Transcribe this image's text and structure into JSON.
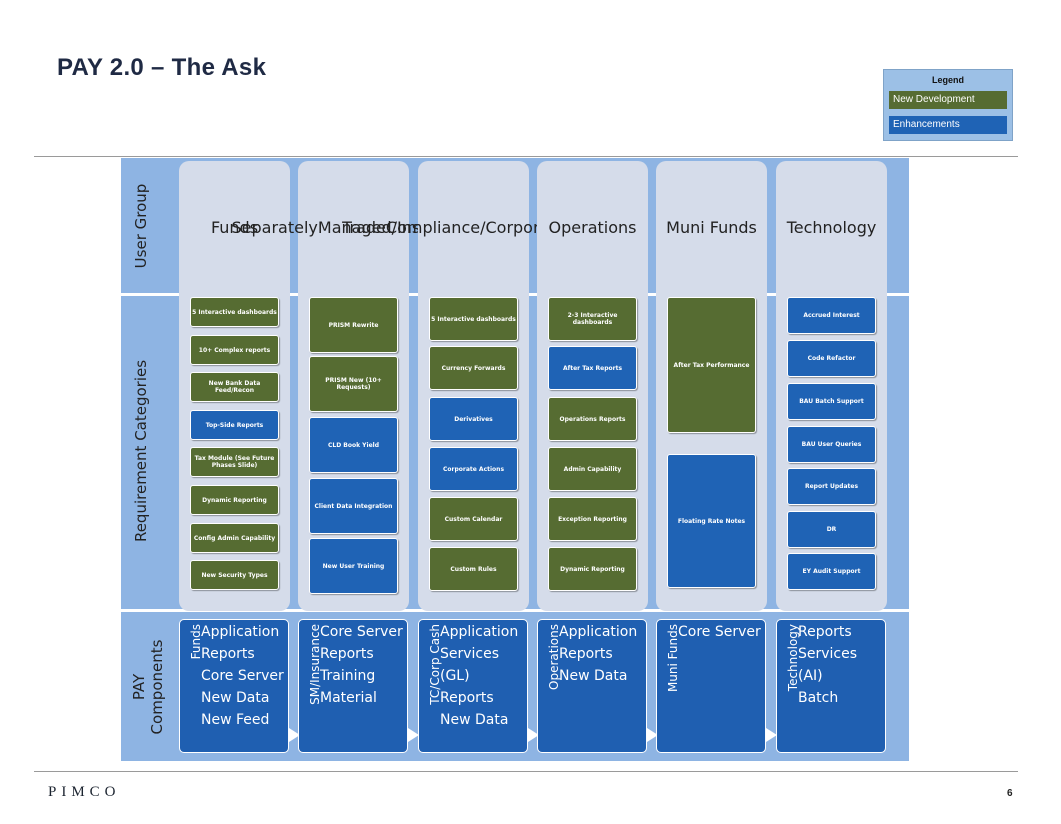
{
  "title": "PAY 2.0 – The Ask",
  "legend": {
    "title": "Legend",
    "items": [
      {
        "label": "New Development",
        "color": "#566c32"
      },
      {
        "label": "Enhancements",
        "color": "#1f63b5"
      }
    ]
  },
  "row_labels": {
    "user_group": "User Group",
    "requirement_categories": "Requirement Categories",
    "pay_components": "PAY Components"
  },
  "columns": [
    {
      "header": [
        "Funds"
      ],
      "requirements": [
        {
          "label": "5 Interactive dashboards",
          "type": "new"
        },
        {
          "label": "10+ Complex reports",
          "type": "new"
        },
        {
          "label": "New Bank Data Feed/Recon",
          "type": "new"
        },
        {
          "label": "Top-Side Reports",
          "type": "enh"
        },
        {
          "label": "Tax Module (See Future Phases Slide)",
          "type": "new"
        },
        {
          "label": "Dynamic Reporting",
          "type": "new"
        },
        {
          "label": "Config Admin Capability",
          "type": "new"
        },
        {
          "label": "New Security Types",
          "type": "new"
        }
      ],
      "component_label": "Funds",
      "components": [
        "Application",
        "Reports",
        "Core Server",
        "New Data",
        "New Feed"
      ]
    },
    {
      "header": [
        "Separately",
        "Managed/",
        "Insurance"
      ],
      "requirements": [
        {
          "label": "PRISM Rewrite",
          "type": "new"
        },
        {
          "label": "PRISM New (10+ Requests)",
          "type": "new"
        },
        {
          "label": "CLD Book Yield",
          "type": "enh"
        },
        {
          "label": "Client Data Integration",
          "type": "enh"
        },
        {
          "label": "New User Training",
          "type": "enh"
        }
      ],
      "component_label": "SM/Insurance",
      "components": [
        "Core Server",
        "Reports",
        "Training",
        "Material"
      ]
    },
    {
      "header": [
        "Trade",
        "Compliance/",
        "Corporate",
        "Cash"
      ],
      "requirements": [
        {
          "label": "5 Interactive dashboards",
          "type": "new"
        },
        {
          "label": "Currency Forwards",
          "type": "new"
        },
        {
          "label": "Derivatives",
          "type": "enh"
        },
        {
          "label": "Corporate Actions",
          "type": "enh"
        },
        {
          "label": "Custom Calendar",
          "type": "new"
        },
        {
          "label": "Custom Rules",
          "type": "new"
        }
      ],
      "component_label": "TC/Corp Cash",
      "components": [
        "Application",
        "Services",
        "(GL)",
        "Reports",
        "New Data"
      ]
    },
    {
      "header": [
        "Operations"
      ],
      "requirements": [
        {
          "label": "2-3 Interactive dashboards",
          "type": "new"
        },
        {
          "label": "After Tax Reports",
          "type": "enh"
        },
        {
          "label": "Operations Reports",
          "type": "new"
        },
        {
          "label": "Admin Capability",
          "type": "new"
        },
        {
          "label": "Exception Reporting",
          "type": "new"
        },
        {
          "label": "Dynamic Reporting",
          "type": "new"
        }
      ],
      "component_label": "Operations",
      "components": [
        "Application",
        "Reports",
        "New Data"
      ]
    },
    {
      "header": [
        "Muni Funds"
      ],
      "requirements": [
        {
          "label": "After Tax Performance",
          "type": "new"
        },
        {
          "label": "Floating Rate Notes",
          "type": "enh"
        }
      ],
      "component_label": "Muni Funds",
      "components": [
        "Core Server"
      ]
    },
    {
      "header": [
        "Technology"
      ],
      "requirements": [
        {
          "label": "Accrued Interest",
          "type": "enh"
        },
        {
          "label": "Code Refactor",
          "type": "enh"
        },
        {
          "label": "BAU Batch Support",
          "type": "enh"
        },
        {
          "label": "BAU User Queries",
          "type": "enh"
        },
        {
          "label": "Report Updates",
          "type": "enh"
        },
        {
          "label": "DR",
          "type": "enh"
        },
        {
          "label": "EY Audit Support",
          "type": "enh"
        }
      ],
      "component_label": "Technology",
      "components": [
        "Reports",
        "Services",
        "(AI)",
        "Batch"
      ]
    }
  ],
  "footer": {
    "logo": "PIMCO",
    "page_number": "6"
  }
}
